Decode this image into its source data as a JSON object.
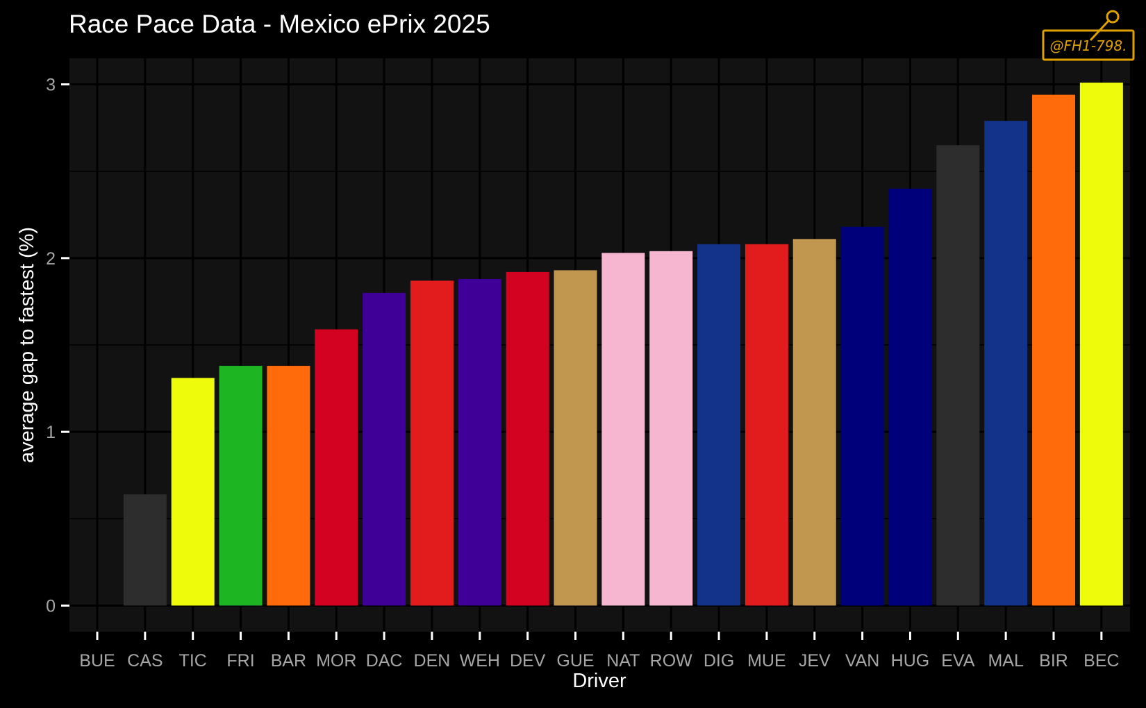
{
  "chart_data": {
    "type": "bar",
    "title": "Race Pace Data - Mexico ePrix 2025",
    "xlabel": "Driver",
    "ylabel": "average gap to fastest (%)",
    "ylim": [
      -0.15,
      3.15
    ],
    "yticks": [
      0,
      1,
      2,
      3
    ],
    "grid": true,
    "legend": "none",
    "categories": [
      "BUE",
      "CAS",
      "TIC",
      "FRI",
      "BAR",
      "MOR",
      "DAC",
      "DEN",
      "WEH",
      "DEV",
      "GUE",
      "NAT",
      "ROW",
      "DIG",
      "MUE",
      "JEV",
      "VAN",
      "HUG",
      "EVA",
      "MAL",
      "BIR",
      "BEC"
    ],
    "values": [
      0,
      0.64,
      1.31,
      1.38,
      1.38,
      1.59,
      1.8,
      1.87,
      1.88,
      1.92,
      1.93,
      2.03,
      2.04,
      2.08,
      2.08,
      2.11,
      2.18,
      2.4,
      2.65,
      2.79,
      2.94,
      3.01
    ],
    "colors": [
      "#2d2d2d",
      "#2d2d2d",
      "#eefc0c",
      "#1db522",
      "#ff6a0a",
      "#d30220",
      "#3e0096",
      "#e21c1c",
      "#3e0096",
      "#d30220",
      "#c1964f",
      "#f6b6cf",
      "#f6b6cf",
      "#13328a",
      "#e21c1c",
      "#c1964f",
      "#00007a",
      "#00007a",
      "#2d2d2d",
      "#13328a",
      "#ff6a0a",
      "#eefc0c"
    ]
  },
  "watermark": {
    "text": "@FH1-798.",
    "color": "#e0a000"
  }
}
